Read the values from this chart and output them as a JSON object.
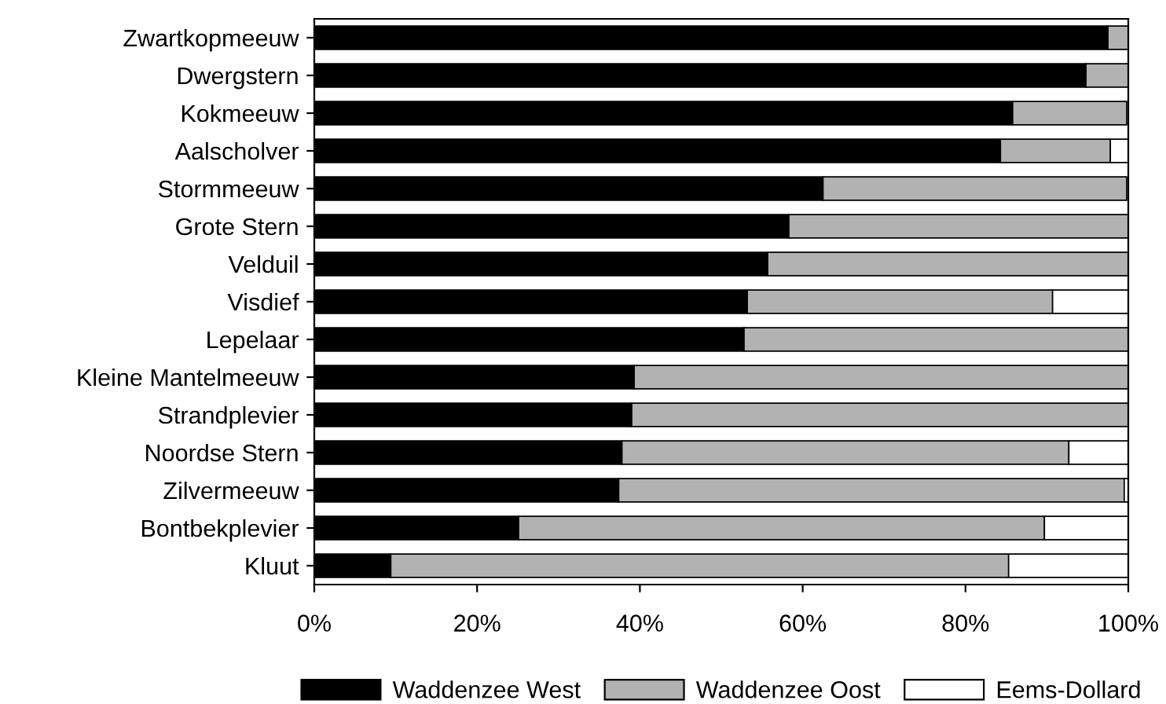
{
  "chart_data": {
    "type": "bar",
    "orientation": "horizontal",
    "stacked": true,
    "categories": [
      "Zwartkopmeeuw",
      "Dwergstern",
      "Kokmeeuw",
      "Aalscholver",
      "Stormmeeuw",
      "Grote Stern",
      "Velduil",
      "Visdief",
      "Lepelaar",
      "Kleine Mantelmeeuw",
      "Strandplevier",
      "Noordse Stern",
      "Zilvermeeuw",
      "Bontbekplevier",
      "Kluut"
    ],
    "series": [
      {
        "name": "Waddenzee West",
        "color": "#000000",
        "values": [
          97.5,
          94.8,
          85.8,
          84.3,
          62.5,
          58.3,
          55.7,
          53.2,
          52.8,
          39.3,
          39.0,
          37.8,
          37.4,
          25.1,
          9.4
        ]
      },
      {
        "name": "Waddenzee Oost",
        "color": "#b2b2b2",
        "values": [
          2.5,
          5.2,
          14.0,
          13.5,
          37.3,
          41.7,
          44.3,
          37.5,
          47.2,
          60.7,
          61.0,
          54.9,
          62.1,
          64.6,
          75.9
        ]
      },
      {
        "name": "Eems-Dollard",
        "color": "#ffffff",
        "values": [
          null,
          null,
          null,
          2.2,
          null,
          null,
          null,
          9.3,
          null,
          null,
          null,
          7.3,
          0.5,
          10.3,
          14.7
        ]
      }
    ],
    "xlim": [
      0,
      100
    ],
    "xticks": [
      {
        "value": 0,
        "label": "0%"
      },
      {
        "value": 20,
        "label": "20%"
      },
      {
        "value": 40,
        "label": "40%"
      },
      {
        "value": 60,
        "label": "60%"
      },
      {
        "value": 80,
        "label": "80%"
      },
      {
        "value": 100,
        "label": "100%"
      }
    ],
    "grid": false,
    "legend": "bottom"
  }
}
